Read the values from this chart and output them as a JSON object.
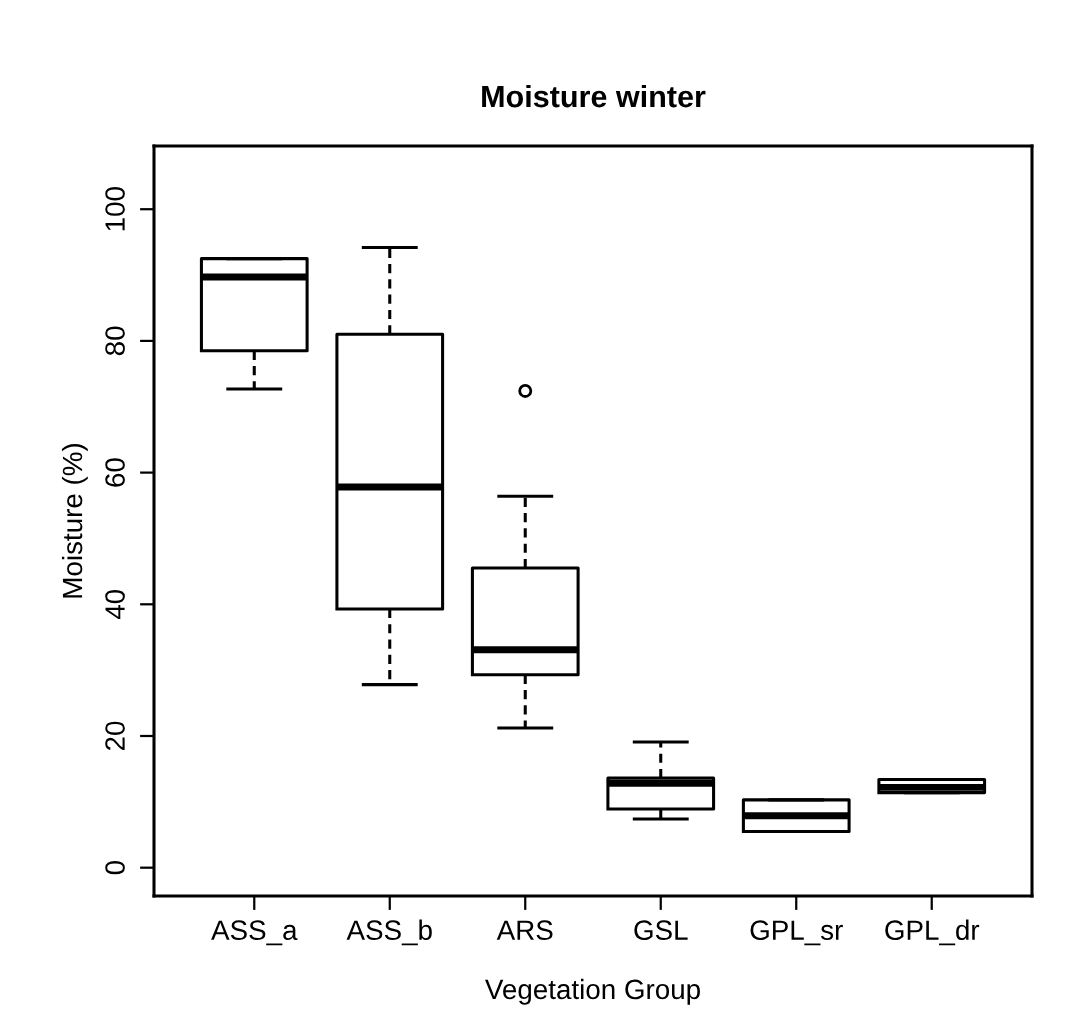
{
  "chart_data": {
    "type": "box",
    "title": "Moisture winter",
    "xlabel": "Vegetation Group",
    "ylabel": "Moisture (%)",
    "categories": [
      "ASS_a",
      "ASS_b",
      "ARS",
      "GSL",
      "GPL_sr",
      "GPL_dr"
    ],
    "boxes": [
      {
        "low": 72.7,
        "q1": 78.5,
        "median": 89.7,
        "q3": 92.5,
        "high": 92.5
      },
      {
        "low": 27.8,
        "q1": 39.3,
        "median": 57.8,
        "q3": 81.0,
        "high": 94.2
      },
      {
        "low": 21.2,
        "q1": 29.3,
        "median": 33.1,
        "q3": 45.5,
        "high": 56.4,
        "outliers": [
          72.4
        ]
      },
      {
        "low": 7.4,
        "q1": 8.9,
        "median": 12.8,
        "q3": 13.6,
        "high": 19.1
      },
      {
        "low": 5.5,
        "q1": 5.5,
        "median": 7.9,
        "q3": 10.3,
        "high": 10.3
      },
      {
        "low": 11.4,
        "q1": 11.4,
        "median": 12.2,
        "q3": 13.4,
        "high": 13.4
      }
    ],
    "ylim": [
      -4.3,
      109.6
    ],
    "yticks": [
      0,
      20,
      40,
      60,
      80,
      100
    ],
    "grid": false,
    "legend": false
  }
}
